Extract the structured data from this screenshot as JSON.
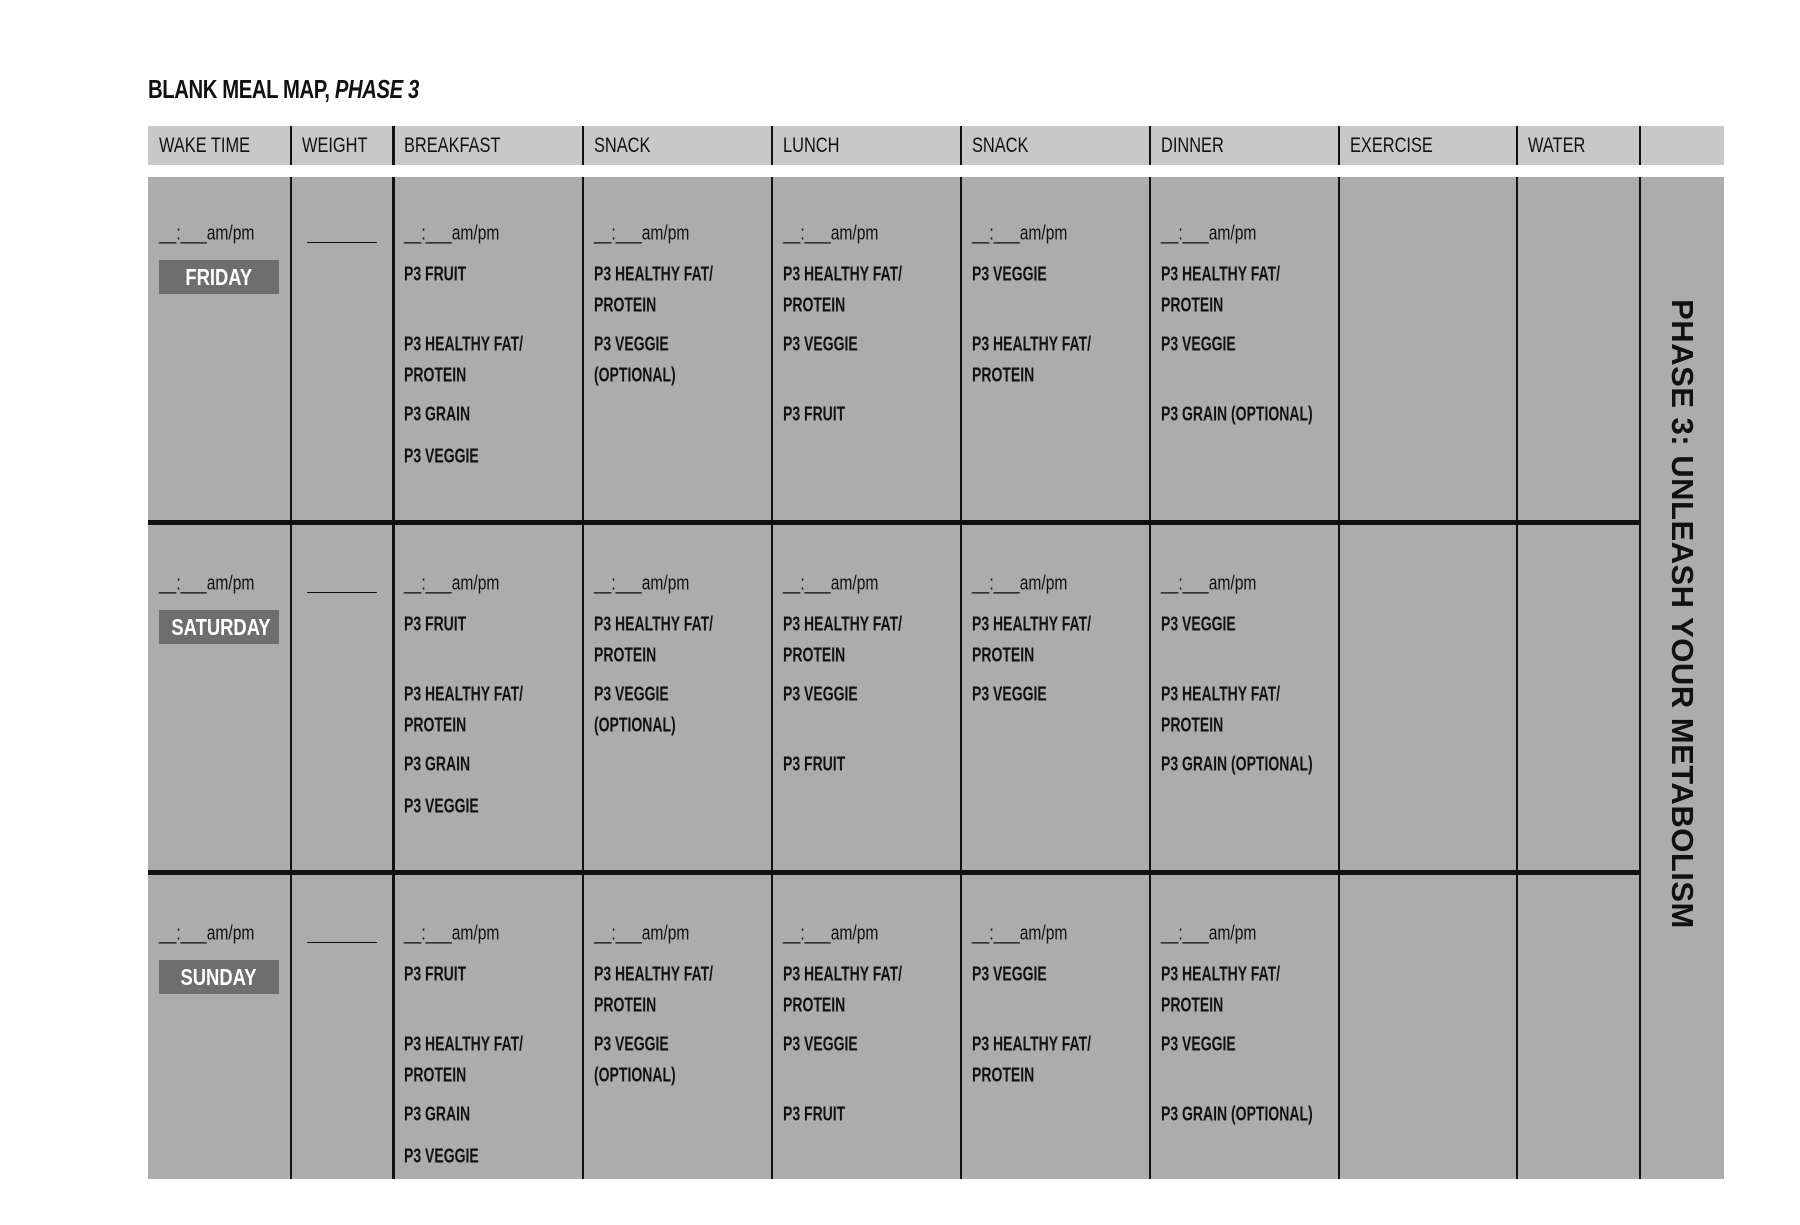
{
  "title": {
    "main": "BLANK MEAL MAP,",
    "italic": "PHASE 3"
  },
  "columns": [
    "WAKE TIME",
    "WEIGHT",
    "BREAKFAST",
    "SNACK",
    "LUNCH",
    "SNACK",
    "DINNER",
    "EXERCISE",
    "WATER",
    ""
  ],
  "time_placeholder": "__:___am/pm",
  "weight_placeholder": "",
  "side_label": "PHASE 3: UNLEASH YOUR METABOLISM",
  "colors": {
    "header_bg": "#c8c8c8",
    "body_bg": "#acacac",
    "day_label_bg": "#6e6e6e"
  },
  "days": [
    {
      "name": "FRIDAY",
      "meals": [
        [
          [
            "P3 FRUIT"
          ],
          [
            "P3 HEALTHY FAT/",
            "PROTEIN"
          ],
          [
            "P3 GRAIN"
          ],
          [
            "P3 VEGGIE"
          ]
        ],
        [
          [
            "P3 HEALTHY FAT/",
            "PROTEIN"
          ],
          [
            "P3 VEGGIE",
            "(OPTIONAL)"
          ]
        ],
        [
          [
            "P3 HEALTHY FAT/",
            "PROTEIN"
          ],
          [
            "P3 VEGGIE"
          ],
          [
            "P3 FRUIT"
          ]
        ],
        [
          [
            "P3 VEGGIE"
          ],
          [
            "P3 HEALTHY FAT/",
            "PROTEIN"
          ]
        ],
        [
          [
            "P3 HEALTHY FAT/",
            "PROTEIN"
          ],
          [
            "P3 VEGGIE"
          ],
          [
            "P3 GRAIN (OPTIONAL)"
          ]
        ]
      ]
    },
    {
      "name": "SATURDAY",
      "meals": [
        [
          [
            "P3 FRUIT"
          ],
          [
            "P3 HEALTHY FAT/",
            "PROTEIN"
          ],
          [
            "P3 GRAIN"
          ],
          [
            "P3 VEGGIE"
          ]
        ],
        [
          [
            "P3 HEALTHY FAT/",
            "PROTEIN"
          ],
          [
            "P3 VEGGIE",
            "(OPTIONAL)"
          ]
        ],
        [
          [
            "P3 HEALTHY FAT/",
            "PROTEIN"
          ],
          [
            "P3 VEGGIE"
          ],
          [
            "P3 FRUIT"
          ]
        ],
        [
          [
            "P3 HEALTHY FAT/",
            "PROTEIN"
          ],
          [
            "P3 VEGGIE"
          ]
        ],
        [
          [
            "P3 VEGGIE"
          ],
          [
            "P3 HEALTHY FAT/",
            "PROTEIN"
          ],
          [
            "P3 GRAIN (OPTIONAL)"
          ]
        ]
      ]
    },
    {
      "name": "SUNDAY",
      "meals": [
        [
          [
            "P3 FRUIT"
          ],
          [
            "P3 HEALTHY FAT/",
            "PROTEIN"
          ],
          [
            "P3 GRAIN"
          ],
          [
            "P3 VEGGIE"
          ]
        ],
        [
          [
            "P3 HEALTHY FAT/",
            "PROTEIN"
          ],
          [
            "P3 VEGGIE",
            "(OPTIONAL)"
          ]
        ],
        [
          [
            "P3 HEALTHY FAT/",
            "PROTEIN"
          ],
          [
            "P3 VEGGIE"
          ],
          [
            "P3 FRUIT"
          ]
        ],
        [
          [
            "P3 VEGGIE"
          ],
          [
            "P3 HEALTHY FAT/",
            "PROTEIN"
          ]
        ],
        [
          [
            "P3 HEALTHY FAT/",
            "PROTEIN"
          ],
          [
            "P3 VEGGIE"
          ],
          [
            "P3 GRAIN (OPTIONAL)"
          ]
        ]
      ]
    }
  ]
}
